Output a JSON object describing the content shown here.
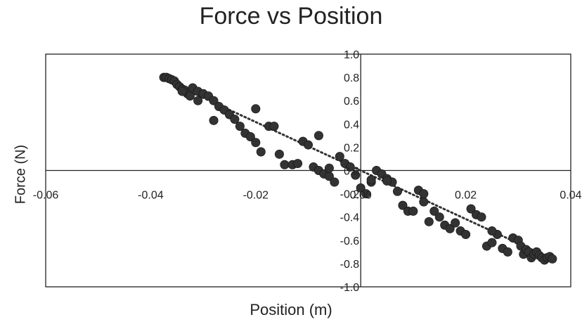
{
  "chart_data": {
    "type": "scatter",
    "title": "Force vs Position",
    "xlabel": "Position (m)",
    "ylabel": "Force (N)",
    "xlim": [
      -0.06,
      0.04
    ],
    "ylim": [
      -1.0,
      1.0
    ],
    "xticks": [
      -0.06,
      -0.04,
      -0.02,
      0.0,
      0.02,
      0.04
    ],
    "xtick_labels": [
      "-0.06",
      "-0.04",
      "-0.02",
      "0.00",
      "0.02",
      "0.04"
    ],
    "yticks": [
      1.0,
      0.8,
      0.6,
      0.4,
      0.2,
      0.0,
      -0.2,
      -0.4,
      -0.6,
      -0.8,
      -1.0
    ],
    "ytick_labels": [
      "1.0",
      "0.8",
      "0.6",
      "0.4",
      "0.2",
      "0.0",
      "-0.2",
      "-0.4",
      "-0.6",
      "-0.8",
      "-1.0"
    ],
    "grid": false,
    "legend": "none",
    "point_color": "#333333",
    "trendline": {
      "style": "dotted",
      "color": "#333333",
      "x": [
        -0.036,
        0.035
      ],
      "y": [
        0.75,
        -0.73
      ]
    },
    "series": [
      {
        "x": [
          -0.0375,
          -0.037,
          -0.0365,
          -0.036,
          -0.0355,
          -0.035,
          -0.0345,
          -0.034,
          -0.0335,
          -0.033,
          -0.0325,
          -0.032,
          -0.031,
          -0.03,
          -0.029,
          -0.028,
          -0.027,
          -0.026,
          -0.025,
          -0.024,
          -0.023,
          -0.022,
          -0.021,
          -0.02,
          -0.019,
          -0.0175,
          -0.0165,
          -0.0155,
          -0.0145,
          -0.013,
          -0.012,
          -0.011,
          -0.01,
          -0.009,
          -0.008,
          -0.007,
          -0.006,
          -0.005,
          -0.004,
          -0.003,
          -0.002,
          -0.001,
          0.0,
          0.001,
          0.002,
          0.003,
          0.004,
          0.005,
          0.006,
          0.007,
          0.008,
          0.009,
          0.01,
          0.011,
          0.012,
          0.013,
          0.014,
          0.015,
          0.016,
          0.017,
          0.018,
          0.019,
          0.02,
          0.021,
          0.022,
          0.023,
          0.024,
          0.025,
          0.026,
          0.027,
          0.028,
          0.029,
          0.03,
          0.0305,
          0.031,
          0.0315,
          0.032,
          0.0325,
          0.033,
          0.0335,
          0.034,
          0.0345,
          0.035,
          0.0355,
          0.036,
          0.0365,
          -0.034,
          -0.031,
          -0.028,
          -0.02,
          -0.008,
          0.005,
          0.012,
          0.025,
          -0.006,
          0.002
        ],
        "y": [
          0.8,
          0.8,
          0.79,
          0.78,
          0.77,
          0.74,
          0.72,
          0.7,
          0.69,
          0.66,
          0.64,
          0.71,
          0.68,
          0.66,
          0.64,
          0.6,
          0.55,
          0.52,
          0.48,
          0.44,
          0.38,
          0.32,
          0.29,
          0.24,
          0.16,
          0.38,
          0.38,
          0.14,
          0.05,
          0.05,
          0.06,
          0.25,
          0.22,
          0.03,
          0.0,
          -0.03,
          -0.05,
          -0.1,
          0.12,
          0.06,
          0.03,
          -0.04,
          -0.15,
          -0.2,
          -0.1,
          0.0,
          -0.03,
          -0.07,
          -0.1,
          -0.18,
          -0.3,
          -0.35,
          -0.35,
          -0.17,
          -0.27,
          -0.44,
          -0.35,
          -0.4,
          -0.47,
          -0.5,
          -0.45,
          -0.52,
          -0.55,
          -0.33,
          -0.38,
          -0.4,
          -0.65,
          -0.62,
          -0.55,
          -0.67,
          -0.7,
          -0.58,
          -0.6,
          -0.65,
          -0.72,
          -0.68,
          -0.7,
          -0.75,
          -0.72,
          -0.7,
          -0.73,
          -0.75,
          -0.77,
          -0.75,
          -0.74,
          -0.76,
          0.68,
          0.6,
          0.43,
          0.53,
          0.3,
          -0.09,
          -0.2,
          -0.52,
          0.02,
          -0.08
        ]
      }
    ]
  }
}
